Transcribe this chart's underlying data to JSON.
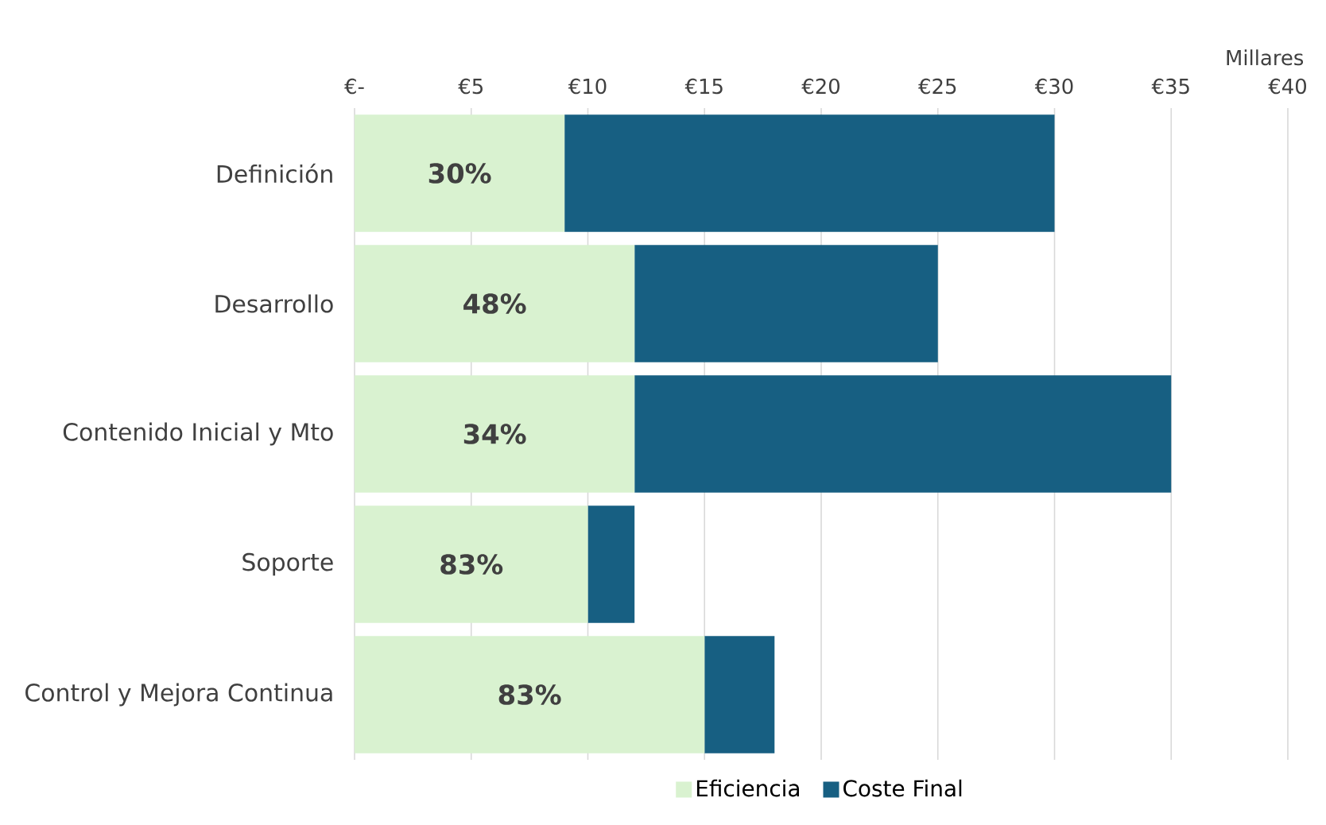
{
  "chart_data": {
    "type": "bar",
    "orientation": "horizontal",
    "stacked": true,
    "xlabel": "Millares",
    "categories": [
      "Definición",
      "Desarrollo",
      "Contenido Inicial y Mto",
      "Soporte",
      "Control y Mejora Continua"
    ],
    "series": [
      {
        "name": "Eficiencia",
        "color": "#d9f2d0",
        "values": [
          9,
          12,
          12,
          10,
          15
        ]
      },
      {
        "name": "Coste Final",
        "color": "#175f82",
        "values": [
          21,
          13,
          23,
          2,
          3
        ]
      }
    ],
    "xlim": [
      0,
      40
    ],
    "xticks": [
      {
        "value": 0,
        "label": "€-"
      },
      {
        "value": 5,
        "label": "€5"
      },
      {
        "value": 10,
        "label": "€10"
      },
      {
        "value": 15,
        "label": "€15"
      },
      {
        "value": 20,
        "label": "€20"
      },
      {
        "value": 25,
        "label": "€25"
      },
      {
        "value": 30,
        "label": "€30"
      },
      {
        "value": 35,
        "label": "€35"
      },
      {
        "value": 40,
        "label": "€40"
      }
    ],
    "annotations": [
      {
        "text": "30%",
        "x": 4.5,
        "y": "Definición"
      },
      {
        "text": "48%",
        "x": 6,
        "y": "Desarrollo"
      },
      {
        "text": "34%",
        "x": 6,
        "y": "Contenido Inicial y Mto"
      },
      {
        "text": "83%",
        "x": 5,
        "y": "Soporte"
      },
      {
        "text": "83%",
        "x": 7.5,
        "y": "Control y Mejora Continua"
      }
    ],
    "grid": "x",
    "legend": "bottom"
  }
}
